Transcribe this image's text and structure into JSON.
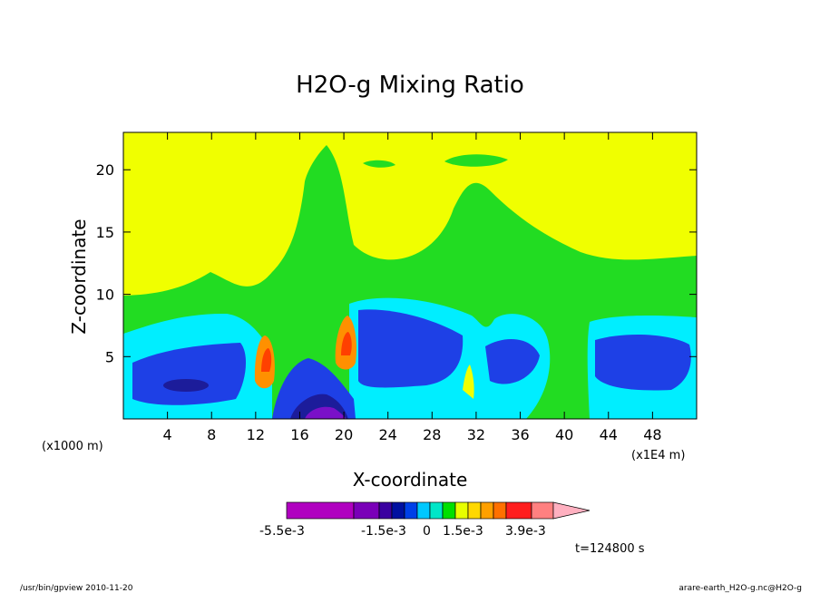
{
  "chart_data": {
    "type": "heatmap",
    "title": "H2O-g Mixing Ratio",
    "xlabel": "X-coordinate",
    "ylabel": "Z-coordinate",
    "x_unit_left": "(x1000 m)",
    "x_unit_right": "(x1E4 m)",
    "xlim": [
      0,
      52
    ],
    "ylim": [
      0,
      23
    ],
    "x_ticks": [
      4,
      8,
      12,
      16,
      20,
      24,
      28,
      32,
      36,
      40,
      44,
      48
    ],
    "y_ticks": [
      5,
      10,
      15,
      20
    ],
    "colorbar": {
      "labels": [
        "-5.5e-3",
        "-1.5e-3",
        "0",
        "1.5e-3",
        "3.9e-3"
      ],
      "colors": [
        "#b000c0",
        "#7a00b8",
        "#3a00a0",
        "#0010a0",
        "#0040e8",
        "#00c8ff",
        "#00e6c8",
        "#00e000",
        "#e8ff00",
        "#ffd800",
        "#ffa000",
        "#ff7000",
        "#ff1e1e",
        "#ff8080",
        "#ffb0c0"
      ]
    },
    "time_label": "t=124800 s"
  },
  "footer": {
    "left": "/usr/bin/gpview  2010-11-20",
    "right": "arare-earth_H2O-g.nc@H2O-g"
  },
  "colors": {
    "yellow": "#f0ff00",
    "green": "#22dc22",
    "cyan": "#00eeff",
    "blue": "#1e40e6",
    "navy": "#1c1c9a",
    "purple": "#7a10c8",
    "orange": "#ff9000",
    "red": "#ff4000"
  }
}
